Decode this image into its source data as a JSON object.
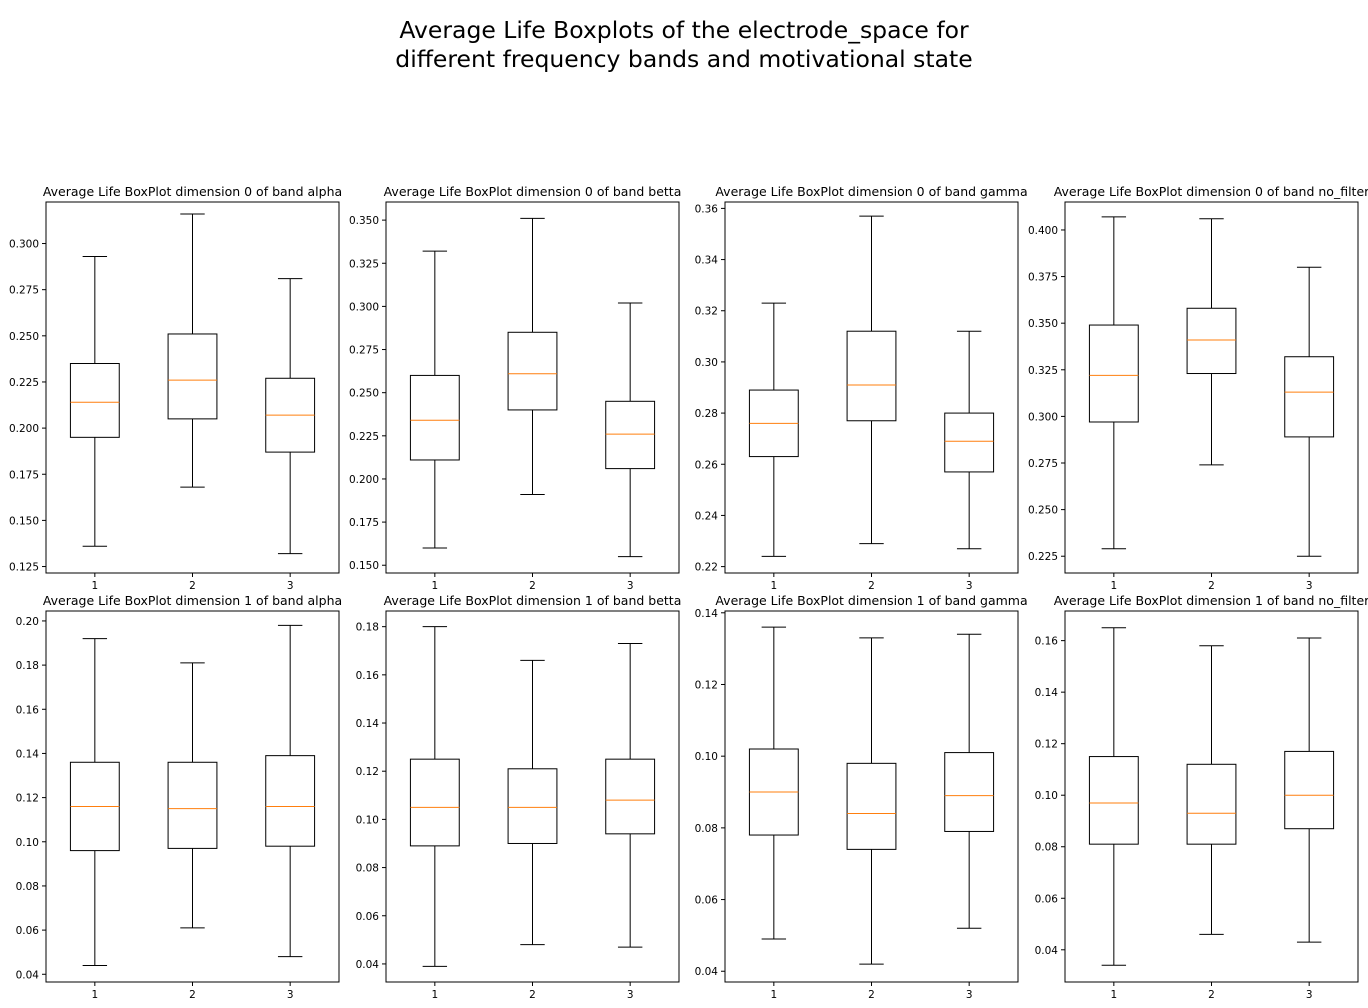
{
  "suptitle_lines": [
    "Average Life Boxplots of the electrode_space for",
    "different frequency bands and motivational state"
  ],
  "colors": {
    "box": "#000000",
    "median": "#ff7f0e",
    "frame": "#000000"
  },
  "chart_data": [
    {
      "type": "boxplot",
      "title": "Average Life BoxPlot dimension 0 of band alpha",
      "categories": [
        "1",
        "2",
        "3"
      ],
      "ylim": [
        0.1215,
        0.3225
      ],
      "yticks": [
        0.125,
        0.15,
        0.175,
        0.2,
        0.225,
        0.25,
        0.275,
        0.3
      ],
      "ytick_labels": [
        "0.125",
        "0.150",
        "0.175",
        "0.200",
        "0.225",
        "0.250",
        "0.275",
        "0.300"
      ],
      "boxes": [
        {
          "whislo": 0.136,
          "q1": 0.195,
          "med": 0.214,
          "q3": 0.235,
          "whishi": 0.293
        },
        {
          "whislo": 0.168,
          "q1": 0.205,
          "med": 0.226,
          "q3": 0.251,
          "whishi": 0.316
        },
        {
          "whislo": 0.132,
          "q1": 0.187,
          "med": 0.207,
          "q3": 0.227,
          "whishi": 0.281
        }
      ]
    },
    {
      "type": "boxplot",
      "title": "Average Life BoxPlot dimension 0 of band betta",
      "categories": [
        "1",
        "2",
        "3"
      ],
      "ylim": [
        0.1455,
        0.3605
      ],
      "yticks": [
        0.15,
        0.175,
        0.2,
        0.225,
        0.25,
        0.275,
        0.3,
        0.325,
        0.35
      ],
      "ytick_labels": [
        "0.150",
        "0.175",
        "0.200",
        "0.225",
        "0.250",
        "0.275",
        "0.300",
        "0.325",
        "0.350"
      ],
      "boxes": [
        {
          "whislo": 0.16,
          "q1": 0.211,
          "med": 0.234,
          "q3": 0.26,
          "whishi": 0.332
        },
        {
          "whislo": 0.191,
          "q1": 0.24,
          "med": 0.261,
          "q3": 0.285,
          "whishi": 0.351
        },
        {
          "whislo": 0.155,
          "q1": 0.206,
          "med": 0.226,
          "q3": 0.245,
          "whishi": 0.302
        }
      ]
    },
    {
      "type": "boxplot",
      "title": "Average Life BoxPlot dimension 0 of band gamma",
      "categories": [
        "1",
        "2",
        "3"
      ],
      "ylim": [
        0.2175,
        0.3625
      ],
      "yticks": [
        0.22,
        0.24,
        0.26,
        0.28,
        0.3,
        0.32,
        0.34,
        0.36
      ],
      "ytick_labels": [
        "0.22",
        "0.24",
        "0.26",
        "0.28",
        "0.30",
        "0.32",
        "0.34",
        "0.36"
      ],
      "boxes": [
        {
          "whislo": 0.224,
          "q1": 0.263,
          "med": 0.276,
          "q3": 0.289,
          "whishi": 0.323
        },
        {
          "whislo": 0.229,
          "q1": 0.277,
          "med": 0.291,
          "q3": 0.312,
          "whishi": 0.357
        },
        {
          "whislo": 0.227,
          "q1": 0.257,
          "med": 0.269,
          "q3": 0.28,
          "whishi": 0.312
        }
      ]
    },
    {
      "type": "boxplot",
      "title": "Average Life BoxPlot dimension 0 of band no_filter",
      "categories": [
        "1",
        "2",
        "3"
      ],
      "ylim": [
        0.216,
        0.415
      ],
      "yticks": [
        0.225,
        0.25,
        0.275,
        0.3,
        0.325,
        0.35,
        0.375,
        0.4
      ],
      "ytick_labels": [
        "0.225",
        "0.250",
        "0.275",
        "0.300",
        "0.325",
        "0.350",
        "0.375",
        "0.400"
      ],
      "boxes": [
        {
          "whislo": 0.229,
          "q1": 0.297,
          "med": 0.322,
          "q3": 0.349,
          "whishi": 0.407
        },
        {
          "whislo": 0.274,
          "q1": 0.323,
          "med": 0.341,
          "q3": 0.358,
          "whishi": 0.406
        },
        {
          "whislo": 0.225,
          "q1": 0.289,
          "med": 0.313,
          "q3": 0.332,
          "whishi": 0.38
        }
      ]
    },
    {
      "type": "boxplot",
      "title": "Average Life BoxPlot dimension 1 of band alpha",
      "categories": [
        "1",
        "2",
        "3"
      ],
      "ylim": [
        0.0365,
        0.2045
      ],
      "yticks": [
        0.04,
        0.06,
        0.08,
        0.1,
        0.12,
        0.14,
        0.16,
        0.18,
        0.2
      ],
      "ytick_labels": [
        "0.04",
        "0.06",
        "0.08",
        "0.10",
        "0.12",
        "0.14",
        "0.16",
        "0.18",
        "0.20"
      ],
      "boxes": [
        {
          "whislo": 0.044,
          "q1": 0.096,
          "med": 0.116,
          "q3": 0.136,
          "whishi": 0.192
        },
        {
          "whislo": 0.061,
          "q1": 0.097,
          "med": 0.115,
          "q3": 0.136,
          "whishi": 0.181
        },
        {
          "whislo": 0.048,
          "q1": 0.098,
          "med": 0.116,
          "q3": 0.139,
          "whishi": 0.198
        }
      ]
    },
    {
      "type": "boxplot",
      "title": "Average Life BoxPlot dimension 1 of band betta",
      "categories": [
        "1",
        "2",
        "3"
      ],
      "ylim": [
        0.0325,
        0.1865
      ],
      "yticks": [
        0.04,
        0.06,
        0.08,
        0.1,
        0.12,
        0.14,
        0.16,
        0.18
      ],
      "ytick_labels": [
        "0.04",
        "0.06",
        "0.08",
        "0.10",
        "0.12",
        "0.14",
        "0.16",
        "0.18"
      ],
      "boxes": [
        {
          "whislo": 0.039,
          "q1": 0.089,
          "med": 0.105,
          "q3": 0.125,
          "whishi": 0.18
        },
        {
          "whislo": 0.048,
          "q1": 0.09,
          "med": 0.105,
          "q3": 0.121,
          "whishi": 0.166
        },
        {
          "whislo": 0.047,
          "q1": 0.094,
          "med": 0.108,
          "q3": 0.125,
          "whishi": 0.173
        }
      ]
    },
    {
      "type": "boxplot",
      "title": "Average Life BoxPlot dimension 1 of band gamma",
      "categories": [
        "1",
        "2",
        "3"
      ],
      "ylim": [
        0.037,
        0.1405
      ],
      "yticks": [
        0.04,
        0.06,
        0.08,
        0.1,
        0.12,
        0.14
      ],
      "ytick_labels": [
        "0.04",
        "0.06",
        "0.08",
        "0.10",
        "0.12",
        "0.14"
      ],
      "boxes": [
        {
          "whislo": 0.049,
          "q1": 0.078,
          "med": 0.09,
          "q3": 0.102,
          "whishi": 0.136
        },
        {
          "whislo": 0.042,
          "q1": 0.074,
          "med": 0.084,
          "q3": 0.098,
          "whishi": 0.133
        },
        {
          "whislo": 0.052,
          "q1": 0.079,
          "med": 0.089,
          "q3": 0.101,
          "whishi": 0.134
        }
      ]
    },
    {
      "type": "boxplot",
      "title": "Average Life BoxPlot dimension 1 of band no_filter",
      "categories": [
        "1",
        "2",
        "3"
      ],
      "ylim": [
        0.0275,
        0.1715
      ],
      "yticks": [
        0.04,
        0.06,
        0.08,
        0.1,
        0.12,
        0.14,
        0.16
      ],
      "ytick_labels": [
        "0.04",
        "0.06",
        "0.08",
        "0.10",
        "0.12",
        "0.14",
        "0.16"
      ],
      "boxes": [
        {
          "whislo": 0.034,
          "q1": 0.081,
          "med": 0.097,
          "q3": 0.115,
          "whishi": 0.165
        },
        {
          "whislo": 0.046,
          "q1": 0.081,
          "med": 0.093,
          "q3": 0.112,
          "whishi": 0.158
        },
        {
          "whislo": 0.043,
          "q1": 0.087,
          "med": 0.1,
          "q3": 0.117,
          "whishi": 0.161
        }
      ]
    }
  ]
}
